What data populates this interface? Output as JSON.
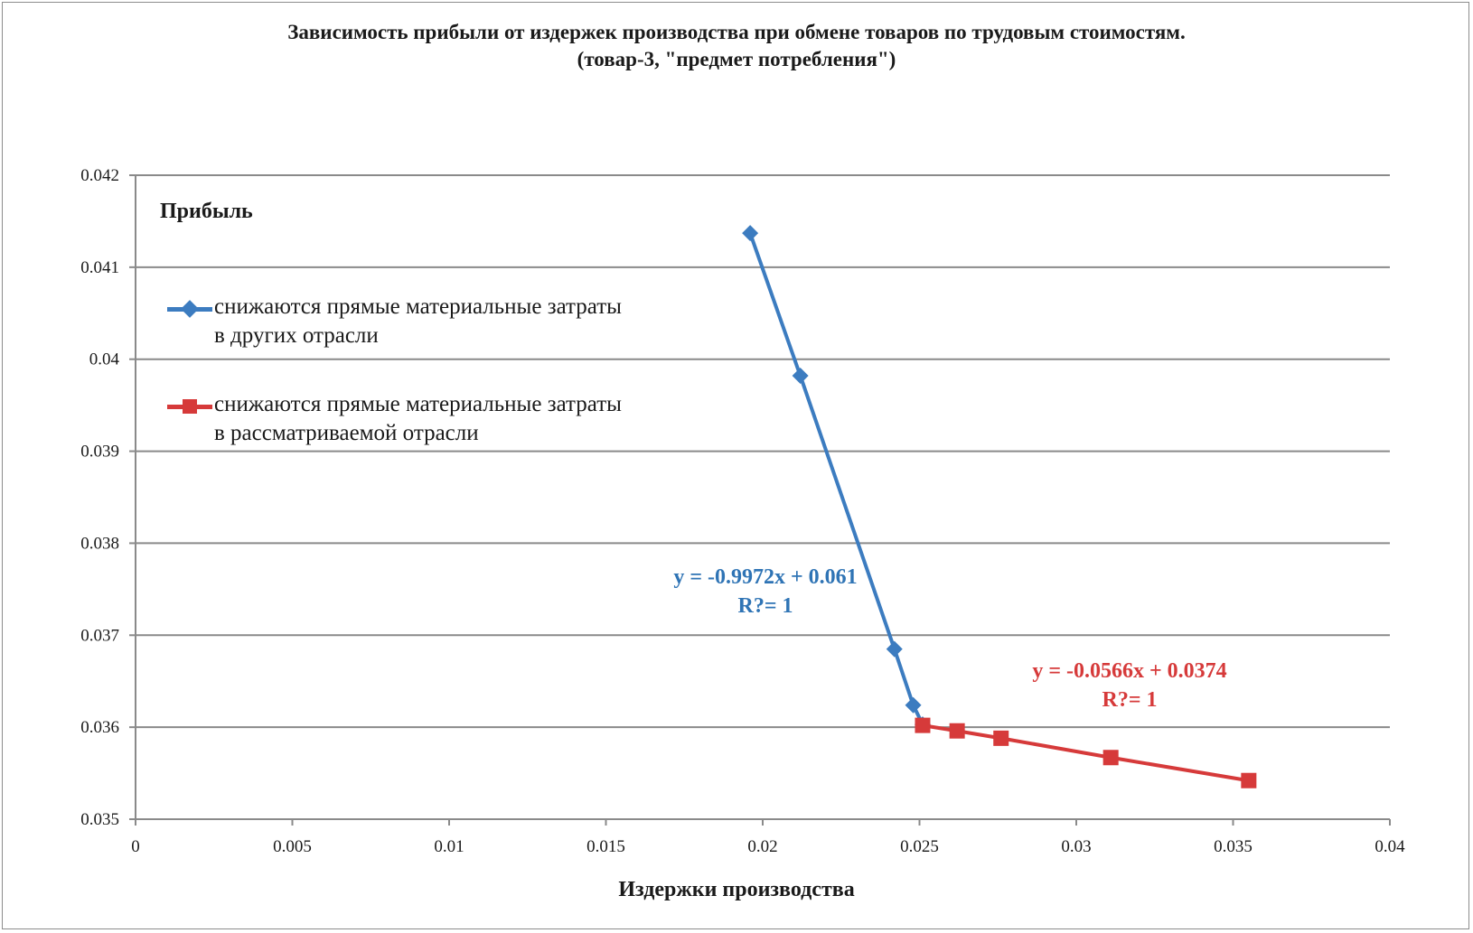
{
  "chart_data": {
    "type": "line",
    "title_lines": [
      "Зависимость прибыли от издержек производства при обмене товаров по трудовым стоимостям.",
      "(товар-3, \"предмет  потребления\")"
    ],
    "ylabel": "Прибыль",
    "xlabel": "Издержки производства",
    "xlim": [
      0,
      0.04
    ],
    "ylim": [
      0.035,
      0.042
    ],
    "x_ticks": [
      "0",
      "0.005",
      "0.01",
      "0.015",
      "0.02",
      "0.025",
      "0.03",
      "0.035",
      "0.04"
    ],
    "y_ticks": [
      "0.035",
      "0.036",
      "0.037",
      "0.038",
      "0.039",
      "0.04",
      "0.041",
      "0.042"
    ],
    "x_tick_values": [
      0,
      0.005,
      0.01,
      0.015,
      0.02,
      0.025,
      0.03,
      0.035,
      0.04
    ],
    "y_tick_values": [
      0.035,
      0.036,
      0.037,
      0.038,
      0.039,
      0.04,
      0.041,
      0.042
    ],
    "grid": "horizontal",
    "legend_position": "top-left",
    "series": [
      {
        "name_lines": [
          "снижаются прямые материальные затраты",
          "в других отрасли"
        ],
        "color": "#3c7cc0",
        "marker": "diamond",
        "points": [
          {
            "x": 0.0196,
            "y": 0.04137
          },
          {
            "x": 0.0212,
            "y": 0.03982
          },
          {
            "x": 0.0242,
            "y": 0.03685
          },
          {
            "x": 0.0248,
            "y": 0.03624
          },
          {
            "x": 0.0251,
            "y": 0.03603
          }
        ],
        "trendline": {
          "equation": "y = -0.9972x + 0.061",
          "r2": "R?= 1"
        }
      },
      {
        "name_lines": [
          "снижаются прямые материальные затраты",
          "в рассматриваемой отрасли"
        ],
        "color": "#d63a3a",
        "marker": "square",
        "points": [
          {
            "x": 0.0251,
            "y": 0.03602
          },
          {
            "x": 0.0262,
            "y": 0.03596
          },
          {
            "x": 0.0276,
            "y": 0.03588
          },
          {
            "x": 0.0311,
            "y": 0.03567
          },
          {
            "x": 0.0355,
            "y": 0.03542
          }
        ],
        "trendline": {
          "equation": "y = -0.0566x + 0.0374",
          "r2": "R?= 1"
        }
      }
    ]
  }
}
